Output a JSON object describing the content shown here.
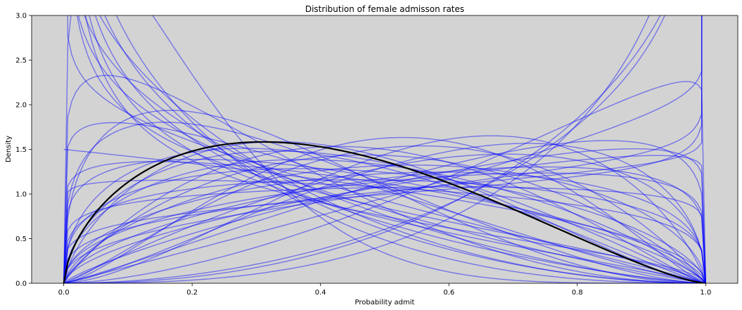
{
  "chart_data": {
    "type": "line",
    "title": "Distribution of female admisson rates",
    "xlabel": "Probability admit",
    "ylabel": "Density",
    "xlim": [
      -0.05,
      1.05
    ],
    "ylim": [
      0,
      3.0
    ],
    "x_ticks": [
      "0.0",
      "0.2",
      "0.4",
      "0.6",
      "0.8",
      "1.0"
    ],
    "y_ticks": [
      "0.0",
      "0.5",
      "1.0",
      "1.5",
      "2.0",
      "2.5",
      "3.0"
    ],
    "grid": false,
    "background": "#d3d3d3",
    "colors": {
      "samples": "#0000ff",
      "mean": "#000000"
    },
    "sample_alpha": 0.45,
    "mean_curve": {
      "a": 1.62,
      "b": 2.38
    },
    "sample_curves": [
      {
        "a": 0.62,
        "b": 1.55
      },
      {
        "a": 0.66,
        "b": 1.85
      },
      {
        "a": 0.72,
        "b": 2.3
      },
      {
        "a": 0.78,
        "b": 2.85
      },
      {
        "a": 0.8,
        "b": 3.4
      },
      {
        "a": 0.85,
        "b": 2.45
      },
      {
        "a": 0.82,
        "b": 2.1
      },
      {
        "a": 0.88,
        "b": 3.0
      },
      {
        "a": 0.75,
        "b": 1.7
      },
      {
        "a": 0.9,
        "b": 1.95
      },
      {
        "a": 1.25,
        "b": 5.6
      },
      {
        "a": 1.15,
        "b": 3.1
      },
      {
        "a": 1.1,
        "b": 2.2
      },
      {
        "a": 1.2,
        "b": 1.75
      },
      {
        "a": 1.3,
        "b": 2.6
      },
      {
        "a": 1.4,
        "b": 3.0
      },
      {
        "a": 1.35,
        "b": 1.6
      },
      {
        "a": 1.45,
        "b": 2.15
      },
      {
        "a": 1.55,
        "b": 2.1
      },
      {
        "a": 1.5,
        "b": 1.85
      },
      {
        "a": 1.7,
        "b": 2.4
      },
      {
        "a": 1.65,
        "b": 1.55
      },
      {
        "a": 1.8,
        "b": 1.9
      },
      {
        "a": 1.9,
        "b": 2.2
      },
      {
        "a": 2.2,
        "b": 1.95
      },
      {
        "a": 2.4,
        "b": 2.25
      },
      {
        "a": 2.0,
        "b": 1.45
      },
      {
        "a": 2.6,
        "b": 1.8
      },
      {
        "a": 1.15,
        "b": 1.1
      },
      {
        "a": 1.25,
        "b": 1.3
      },
      {
        "a": 1.5,
        "b": 1.35
      },
      {
        "a": 1.6,
        "b": 1.2
      },
      {
        "a": 1.3,
        "b": 0.95
      },
      {
        "a": 1.2,
        "b": 0.9
      },
      {
        "a": 1.4,
        "b": 0.92
      },
      {
        "a": 1.8,
        "b": 1.1
      },
      {
        "a": 2.1,
        "b": 1.2
      },
      {
        "a": 2.6,
        "b": 1.05
      },
      {
        "a": 3.2,
        "b": 0.85
      },
      {
        "a": 2.9,
        "b": 0.8
      },
      {
        "a": 3.6,
        "b": 0.78
      },
      {
        "a": 1.05,
        "b": 1.25
      },
      {
        "a": 2.3,
        "b": 1.5
      },
      {
        "a": 1.0,
        "b": 1.5
      },
      {
        "a": 1.1,
        "b": 1.6
      },
      {
        "a": 1.6,
        "b": 1.05
      },
      {
        "a": 2.0,
        "b": 0.95
      },
      {
        "a": 1.45,
        "b": 1.15
      }
    ]
  }
}
